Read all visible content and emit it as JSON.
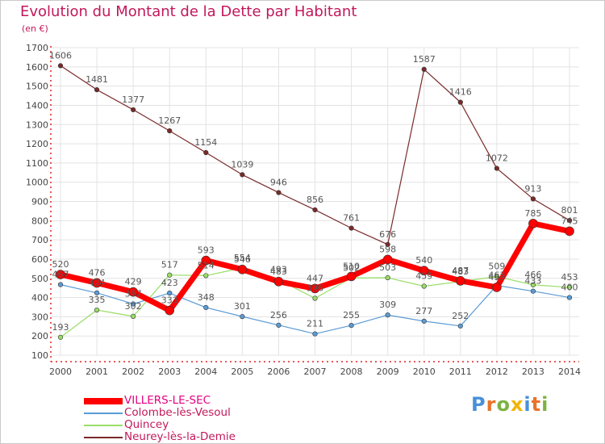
{
  "chart_data": {
    "type": "line",
    "title": "Evolution du Montant de la Dette par Habitant",
    "subtitle": "(en €)",
    "xlabel": "",
    "ylabel": "",
    "x": [
      "2000",
      "2001",
      "2002",
      "2003",
      "2004",
      "2005",
      "2006",
      "2007",
      "2008",
      "2009",
      "2010",
      "2011",
      "2012",
      "2013",
      "2014"
    ],
    "ylim": [
      100,
      1700
    ],
    "yticks": [
      100,
      200,
      300,
      400,
      500,
      600,
      700,
      800,
      900,
      1000,
      1100,
      1200,
      1300,
      1400,
      1500,
      1600,
      1700
    ],
    "grid": true,
    "legend_position": "bottom-left",
    "series": [
      {
        "name": "VILLERS-LE-SEC",
        "color": "#ff0000",
        "values": [
          520,
          476,
          429,
          333,
          593,
          546,
          483,
          447,
          510,
          598,
          540,
          487,
          453,
          785,
          745
        ],
        "labels": [
          "520",
          "476",
          "429",
          "333",
          "593",
          "546",
          "483",
          "447",
          "510",
          "598",
          "540",
          "487",
          "453",
          "785",
          "745"
        ]
      },
      {
        "name": "Colombe-lès-Vesoul",
        "color": "#5b9bd5",
        "values": [
          467,
          424,
          367,
          423,
          348,
          301,
          256,
          211,
          255,
          309,
          277,
          252,
          463,
          433,
          400
        ],
        "labels": [
          "467",
          "424",
          "367",
          "423",
          "348",
          "301",
          "256",
          "211",
          "255",
          "309",
          "277",
          "252",
          "463",
          "433",
          "400"
        ]
      },
      {
        "name": "Quincey",
        "color": "#99dd66",
        "values": [
          193,
          335,
          302,
          517,
          514,
          554,
          493,
          396,
          502,
          503,
          459,
          483,
          509,
          466,
          453
        ],
        "labels": [
          "193",
          "335",
          "302",
          "517",
          "514",
          "554",
          "493",
          "396",
          "502",
          "503",
          "459",
          "483",
          "509",
          "466",
          "453"
        ]
      },
      {
        "name": "Neurey-lès-la-Demie",
        "color": "#7a2a2a",
        "values": [
          1606,
          1481,
          1377,
          1267,
          1154,
          1039,
          946,
          856,
          761,
          676,
          1587,
          1416,
          1072,
          913,
          801
        ],
        "labels": [
          "1606",
          "1481",
          "1377",
          "1267",
          "1154",
          "1039",
          "946",
          "856",
          "761",
          "676",
          "1587",
          "1416",
          "1072",
          "913",
          "801"
        ]
      }
    ]
  },
  "logo": {
    "text": "Proxiti"
  }
}
